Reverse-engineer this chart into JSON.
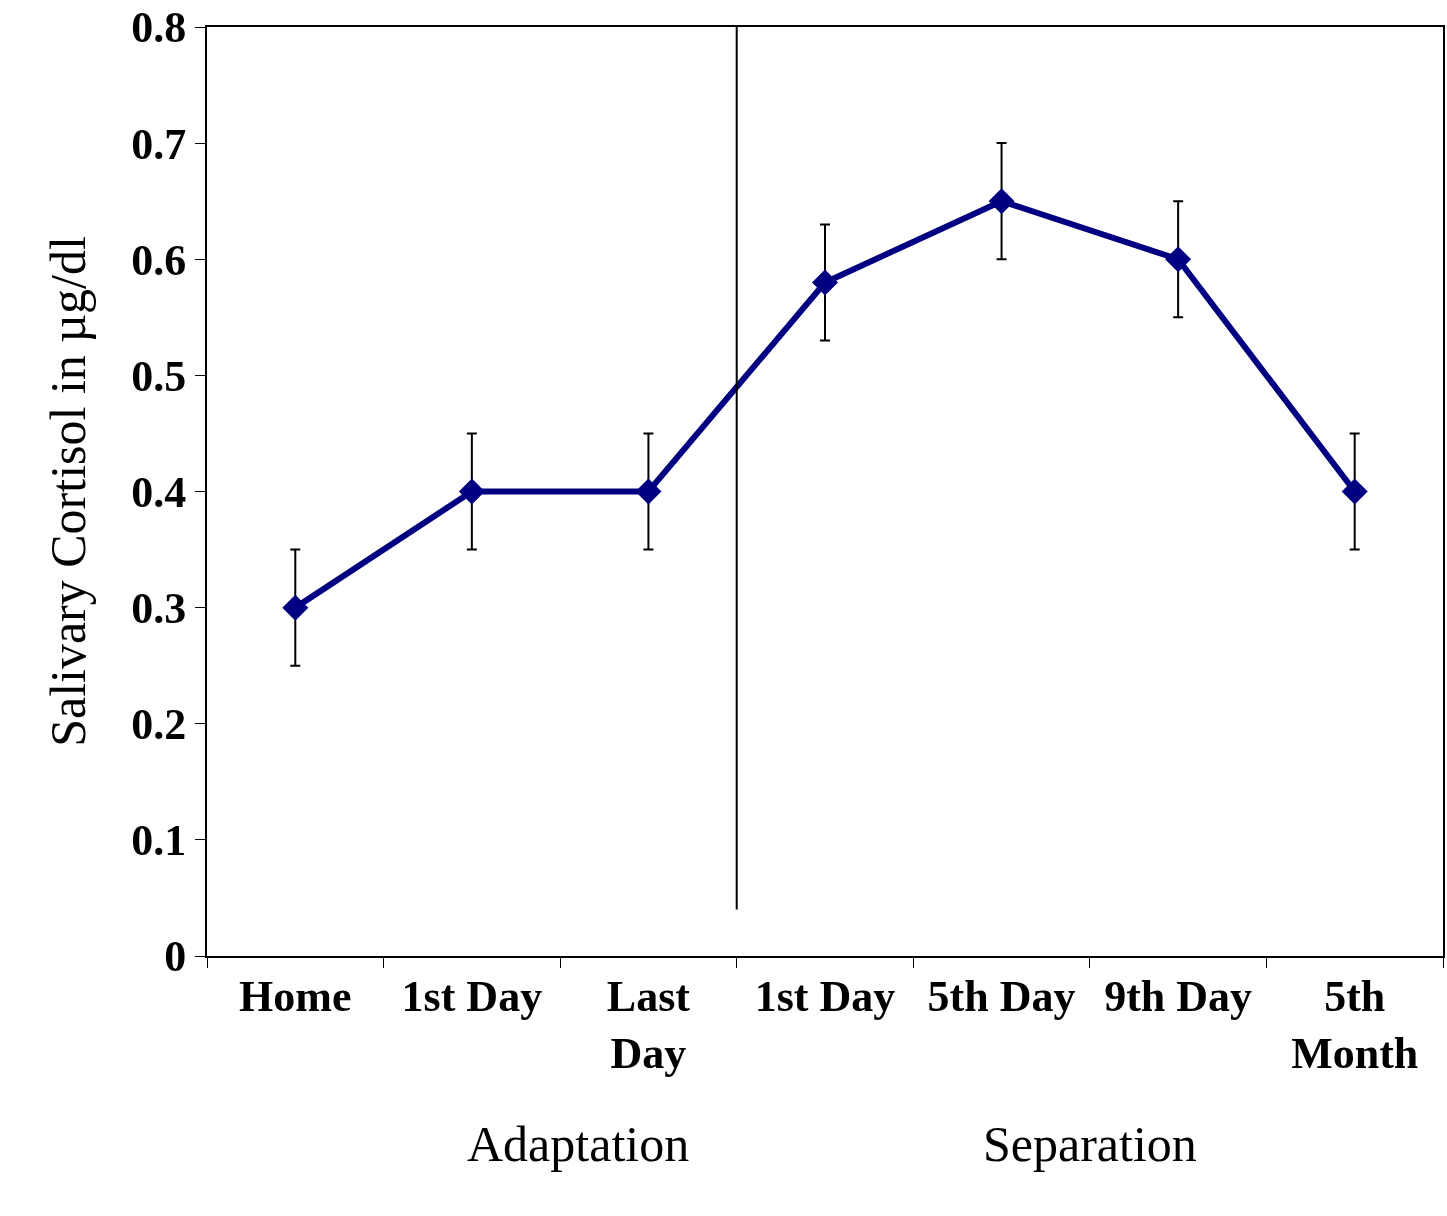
{
  "chart_data": {
    "type": "line",
    "ylabel": "Salivary Cortisol in µg/dl",
    "categories": [
      "Home",
      "1st Day",
      "Last Day",
      "1st Day",
      "5th Day",
      "9th Day",
      "5th Month"
    ],
    "series": [
      {
        "color": "#000080",
        "values": [
          0.3,
          0.4,
          0.4,
          0.58,
          0.65,
          0.6,
          0.4
        ],
        "errors": [
          0.05,
          0.05,
          0.05,
          0.05,
          0.05,
          0.05,
          0.05
        ]
      }
    ],
    "ylim": [
      0,
      0.8
    ],
    "yticks": [
      0,
      0.1,
      0.2,
      0.3,
      0.4,
      0.5,
      0.6,
      0.7,
      0.8
    ],
    "annotations": [
      "Adaptation",
      "Separation"
    ],
    "marker": "diamond",
    "line_style": "solid",
    "legend": false
  }
}
